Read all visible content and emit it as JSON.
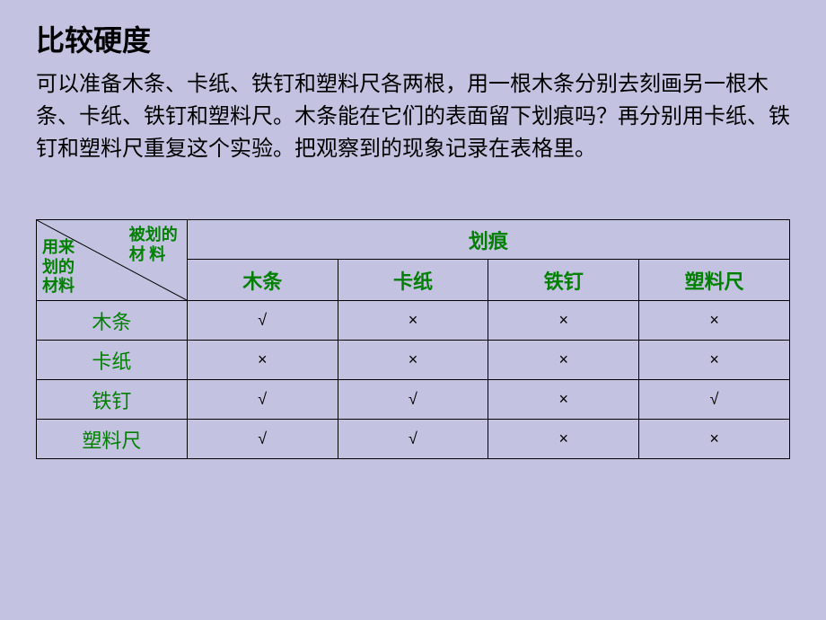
{
  "title": "比较硬度",
  "description": "可以准备木条、卡纸、铁钉和塑料尺各两根，用一根木条分别去刻画另一根木条、卡纸、铁钉和塑料尺。木条能在它们的表面留下划痕吗？再分别用卡纸、铁钉和塑料尺重复这个实验。把观察到的现象记录在表格里。",
  "table": {
    "diag_top": "被划的\n材 料",
    "diag_bottom": "用来\n划的\n材料",
    "main_header": "划痕",
    "columns": [
      "木条",
      "卡纸",
      "铁钉",
      "塑料尺"
    ],
    "rows": [
      {
        "label": "木条",
        "values": [
          "√",
          "×",
          "×",
          "×"
        ]
      },
      {
        "label": "卡纸",
        "values": [
          "×",
          "×",
          "×",
          "×"
        ]
      },
      {
        "label": "铁钉",
        "values": [
          "√",
          "√",
          "×",
          "√"
        ]
      },
      {
        "label": "塑料尺",
        "values": [
          "√",
          "√",
          "×",
          "×"
        ]
      }
    ],
    "colors": {
      "background": "#c3c3e1",
      "header_text": "#008000",
      "body_text": "#000000",
      "border": "#000000"
    },
    "check_symbol": "√",
    "cross_symbol": "×"
  }
}
